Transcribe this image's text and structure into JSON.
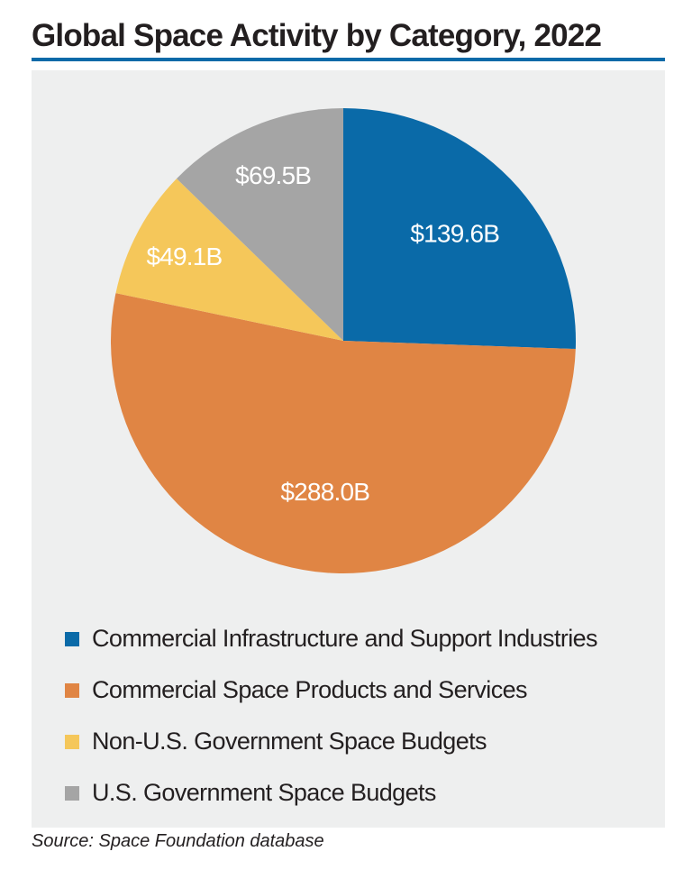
{
  "chart_data": {
    "type": "pie",
    "title": "Global Space Activity by Category, 2022",
    "categories": [
      "Commercial Infrastructure and Support Industries",
      "Commercial Space Products and Services",
      "Non-U.S. Government Space Budgets",
      "U.S. Government Space Budgets"
    ],
    "values": [
      139.6,
      288.0,
      49.1,
      69.5
    ],
    "data_labels": [
      "$139.6B",
      "$288.0B",
      "$49.1B",
      "$69.5B"
    ],
    "colors": [
      "#0a6aa8",
      "#e08544",
      "#f5c75a",
      "#a5a5a5"
    ],
    "start_angle": "12 o'clock, clockwise",
    "legend_placement": "bottom"
  },
  "source": "Source: Space Foundation database"
}
